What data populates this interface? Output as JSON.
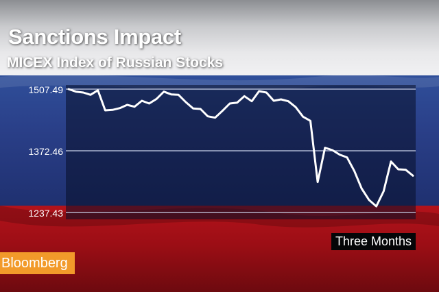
{
  "chart_data": {
    "type": "line",
    "title": "Sanctions Impact",
    "subtitle": "MICEX Index of Russian Stocks",
    "y_ticks": [
      1507.49,
      1372.46,
      1237.43
    ],
    "ylim": [
      1237.43,
      1507.49
    ],
    "range_label": "Three Months",
    "grid": true,
    "series": [
      {
        "values": [
          1507.49,
          1502,
          1500,
          1495,
          1505,
          1461,
          1462,
          1466,
          1473,
          1469,
          1482,
          1476,
          1486,
          1502,
          1496,
          1495,
          1479,
          1465,
          1464,
          1448,
          1445,
          1460,
          1476,
          1478,
          1492,
          1481,
          1503,
          1500,
          1482,
          1485,
          1481,
          1468,
          1447,
          1438,
          1304,
          1379,
          1374,
          1364,
          1358,
          1328,
          1290,
          1265,
          1251,
          1284,
          1349,
          1332,
          1331,
          1318
        ]
      }
    ]
  },
  "brand": {
    "label": "Bloomberg"
  },
  "colors": {
    "line": "#ffffff",
    "grid": "#c9d2ea",
    "brand": "#f29a2a"
  }
}
